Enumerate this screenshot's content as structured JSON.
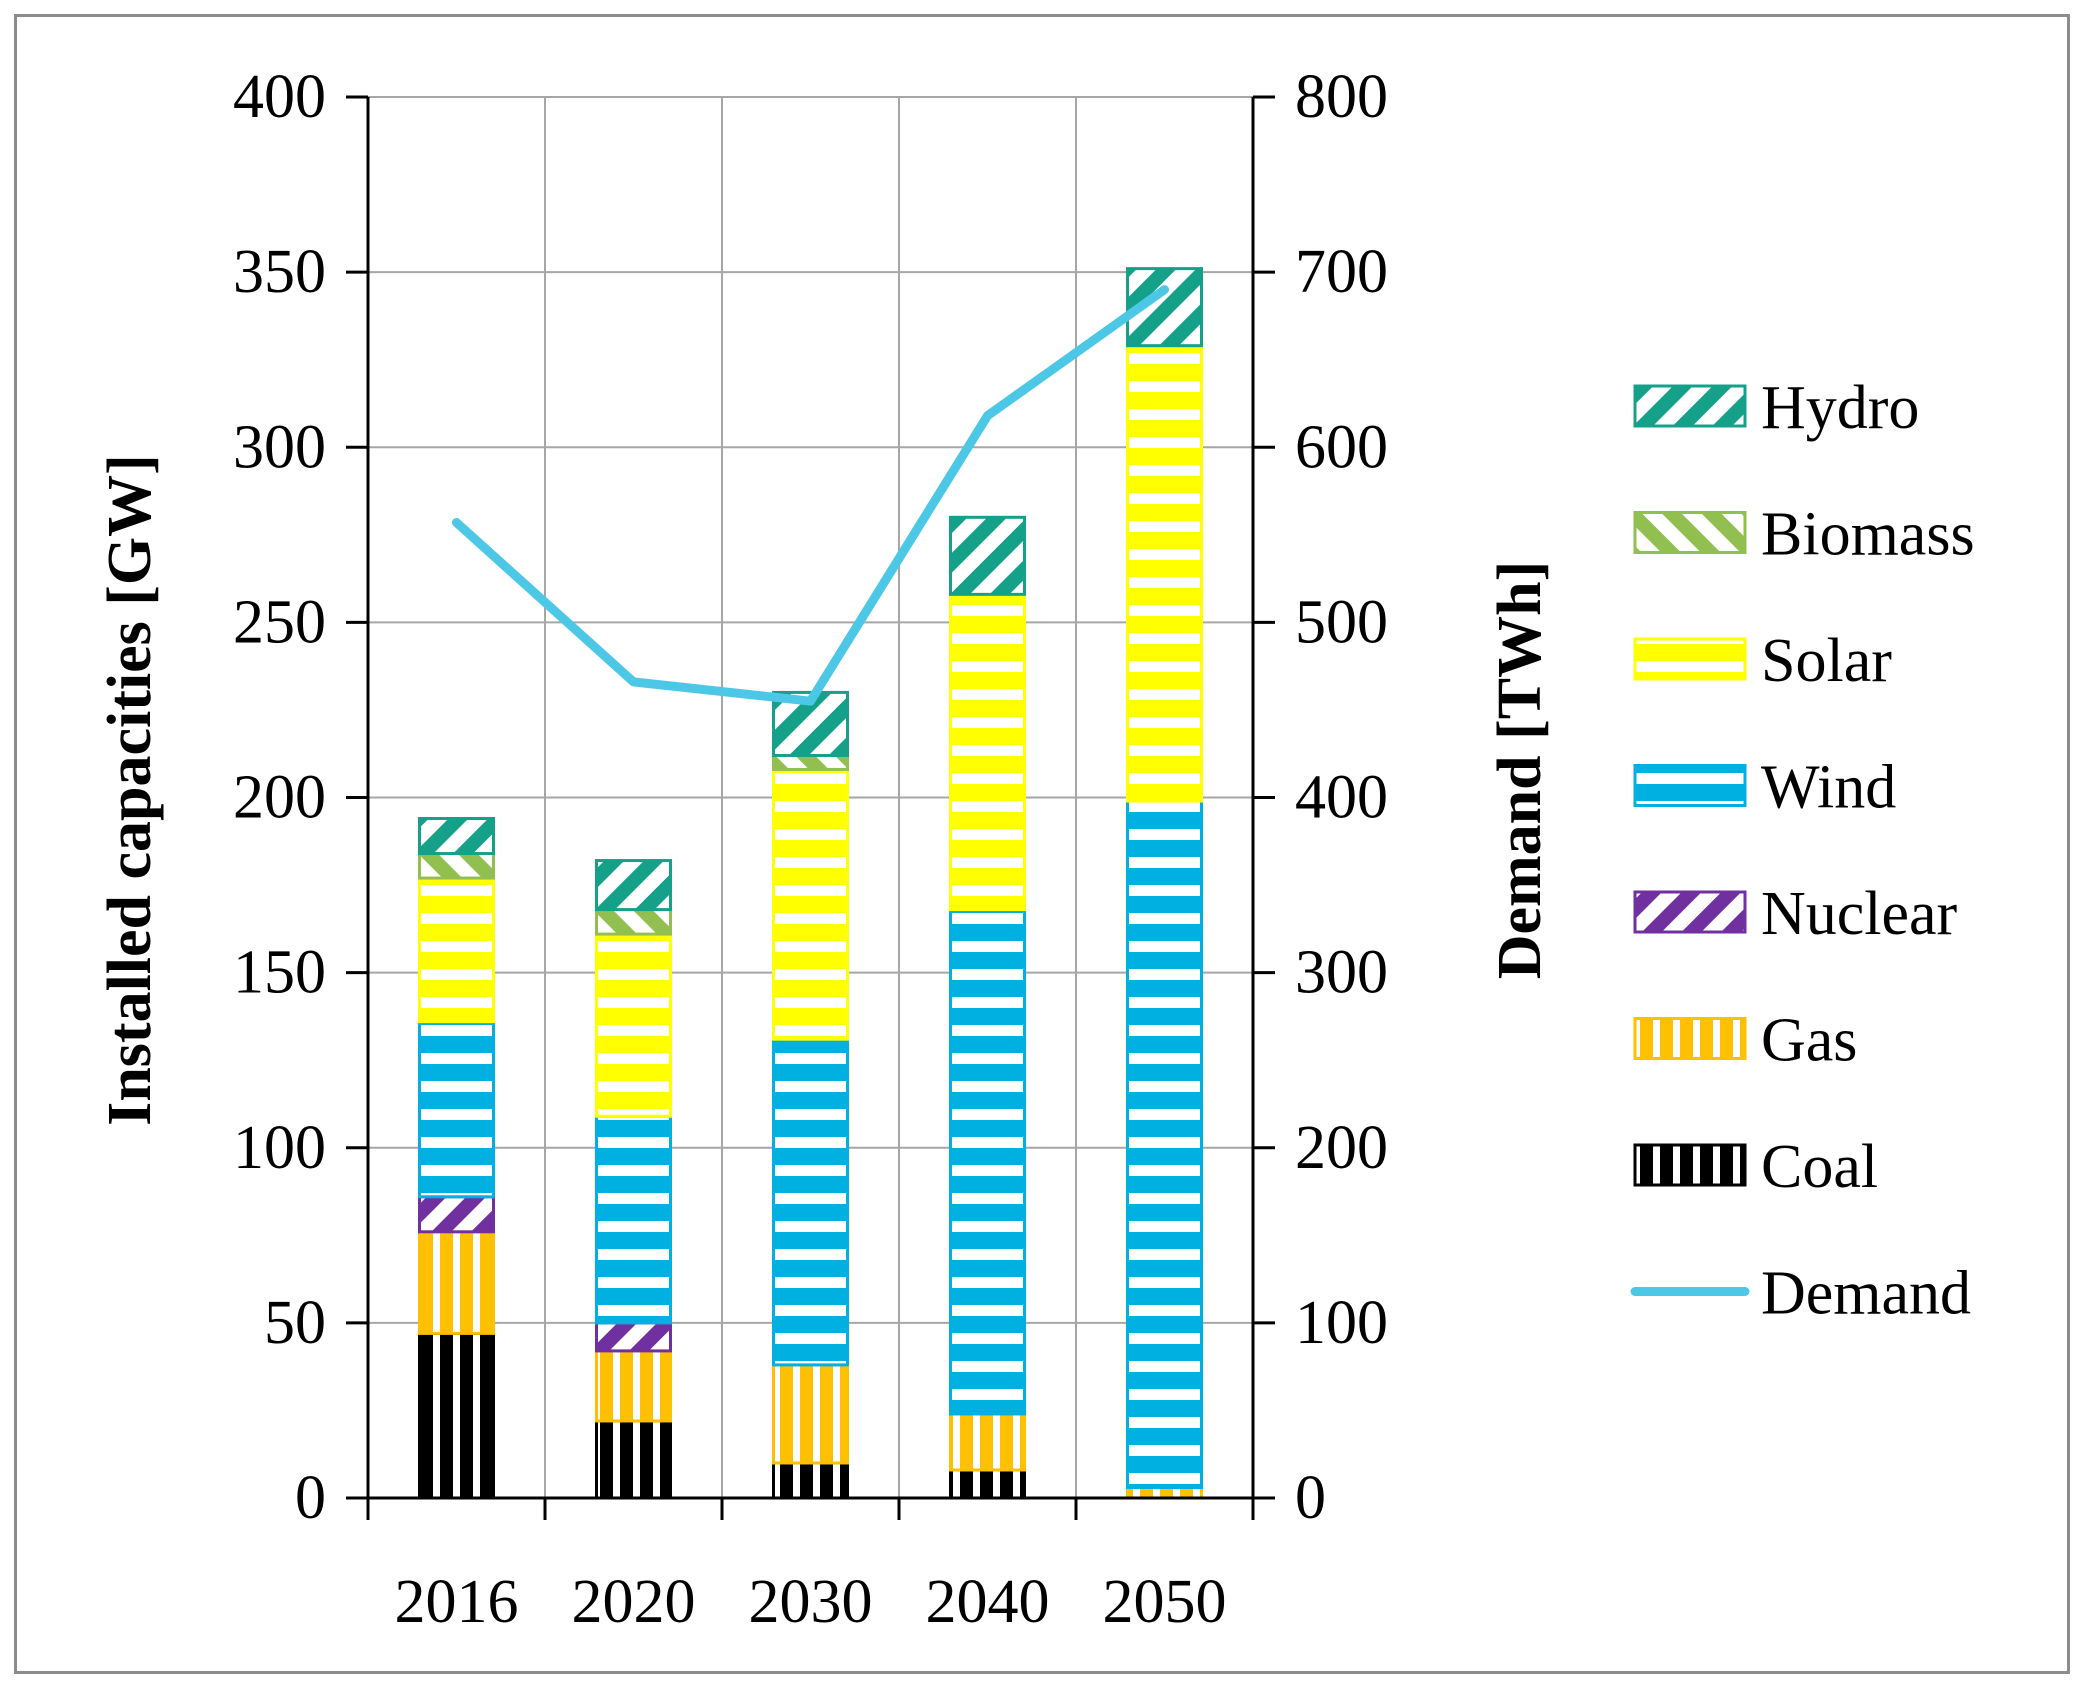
{
  "chart_data": {
    "type": "bar",
    "stacked": true,
    "categories": [
      "2016",
      "2020",
      "2030",
      "2040",
      "2050"
    ],
    "series": [
      {
        "name": "Coal",
        "color": "#000000",
        "pattern": "vertical",
        "values": [
          47,
          22,
          10,
          8,
          0
        ]
      },
      {
        "name": "Gas",
        "color": "#ffc000",
        "pattern": "vertical",
        "values": [
          29,
          20,
          28,
          16,
          3
        ]
      },
      {
        "name": "Nuclear",
        "color": "#7030a0",
        "pattern": "diagonal",
        "values": [
          10,
          8,
          0,
          0,
          0
        ]
      },
      {
        "name": "Wind",
        "color": "#00b0e0",
        "pattern": "horizontal",
        "values": [
          50,
          59,
          93,
          144,
          196
        ]
      },
      {
        "name": "Solar",
        "color": "#ffff00",
        "pattern": "horizontal",
        "values": [
          41,
          52,
          77,
          90,
          130
        ]
      },
      {
        "name": "Biomass",
        "color": "#92c050",
        "pattern": "diagonal-back",
        "values": [
          7,
          7,
          4,
          0,
          0
        ]
      },
      {
        "name": "Hydro",
        "color": "#15a08a",
        "pattern": "diagonal",
        "values": [
          10,
          14,
          18,
          22,
          22
        ]
      }
    ],
    "line_series": {
      "name": "Demand",
      "color": "#4cc8e6",
      "axis": "right",
      "values": [
        557,
        466,
        455,
        618,
        690
      ]
    },
    "ylabel": "Installed capacities [GW]",
    "y2label": "Demand [TWh]",
    "ylim": [
      0,
      400
    ],
    "y2lim": [
      0,
      800
    ],
    "yticks": [
      "0",
      "50",
      "100",
      "150",
      "200",
      "250",
      "300",
      "350",
      "400"
    ],
    "y2ticks": [
      "0",
      "100",
      "200",
      "300",
      "400",
      "500",
      "600",
      "700",
      "800"
    ],
    "grid": true,
    "legend_position": "right",
    "legend_order": [
      "Hydro",
      "Biomass",
      "Solar",
      "Wind",
      "Nuclear",
      "Gas",
      "Coal",
      "Demand"
    ]
  }
}
